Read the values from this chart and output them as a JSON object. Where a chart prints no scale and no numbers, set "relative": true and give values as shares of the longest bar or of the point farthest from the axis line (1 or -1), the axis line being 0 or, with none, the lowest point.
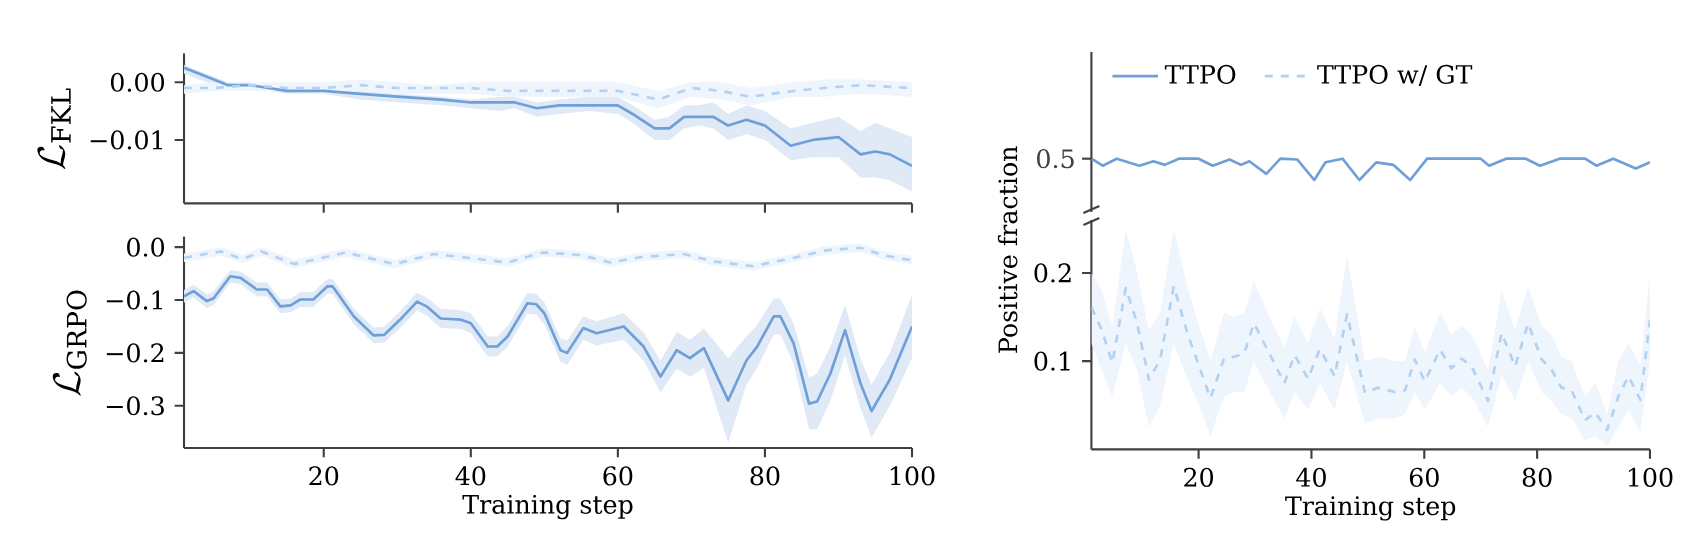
{
  "chart_data": [
    {
      "type": "line",
      "ylabel": "\\mathcal{L}_{\\mathrm{FKL}}",
      "xlim": [
        1,
        100
      ],
      "ylim": [
        -0.021,
        0.005
      ],
      "xticks": [
        {
          "value": 20,
          "label": null
        },
        {
          "value": 40,
          "label": null
        },
        {
          "value": 60,
          "label": null
        },
        {
          "value": 80,
          "label": null
        },
        {
          "value": 100,
          "label": null
        }
      ],
      "yticks": [
        {
          "value": 0,
          "label": "0.00"
        },
        {
          "value": -0.01,
          "label": "−0.01"
        }
      ],
      "tick_labels": "y",
      "series": [
        {
          "color": "#6f9fd8",
          "line_style": "solid",
          "x": [
            1,
            3,
            7,
            10,
            15,
            20,
            25,
            30,
            36,
            40,
            44,
            46,
            49,
            52,
            56,
            60,
            62,
            65,
            67,
            69,
            71,
            73,
            75,
            77.5,
            80,
            83.5,
            86.5,
            90,
            93,
            95,
            97,
            100
          ],
          "values": [
            0.0025,
            0.0015,
            -0.0005,
            -0.0005,
            -0.0015,
            -0.0015,
            -0.002,
            -0.0025,
            -0.003,
            -0.0035,
            -0.0035,
            -0.0035,
            -0.0045,
            -0.004,
            -0.004,
            -0.004,
            -0.0055,
            -0.008,
            -0.008,
            -0.006,
            -0.006,
            -0.006,
            -0.0075,
            -0.0065,
            -0.0075,
            -0.011,
            -0.01,
            -0.0095,
            -0.0125,
            -0.012,
            -0.0125,
            -0.0145
          ],
          "lower": [
            0.0015,
            0.0005,
            -0.001,
            -0.001,
            -0.002,
            -0.002,
            -0.003,
            -0.0035,
            -0.004,
            -0.0045,
            -0.005,
            -0.0045,
            -0.006,
            -0.0055,
            -0.005,
            -0.0055,
            -0.007,
            -0.01,
            -0.01,
            -0.008,
            -0.0075,
            -0.008,
            -0.01,
            -0.009,
            -0.01,
            -0.0135,
            -0.013,
            -0.013,
            -0.0165,
            -0.0165,
            -0.017,
            -0.019
          ],
          "upper": [
            0.003,
            0.002,
            0,
            0,
            -0.001,
            -0.001,
            -0.0015,
            -0.002,
            -0.0025,
            -0.003,
            -0.0025,
            -0.0025,
            -0.0035,
            -0.003,
            -0.0025,
            -0.0025,
            -0.004,
            -0.0065,
            -0.006,
            -0.004,
            -0.004,
            -0.0035,
            -0.0055,
            -0.004,
            -0.005,
            -0.008,
            -0.007,
            -0.006,
            -0.0085,
            -0.007,
            -0.008,
            -0.0095
          ]
        },
        {
          "color": "#b3d1f1",
          "line_style": "dashed",
          "x": [
            1,
            5,
            10,
            15,
            20,
            25,
            30,
            35,
            40,
            45,
            50,
            55,
            60,
            65.5,
            70,
            74,
            78,
            84,
            88,
            93,
            100
          ],
          "values": [
            -0.001,
            -0.001,
            -0.0005,
            -0.001,
            -0.001,
            -0.0005,
            -0.001,
            -0.001,
            -0.001,
            -0.0015,
            -0.0015,
            -0.0015,
            -0.0015,
            -0.003,
            -0.001,
            -0.0015,
            -0.0025,
            -0.0015,
            -0.001,
            -0.0005,
            -0.001
          ],
          "lower": [
            -0.002,
            -0.0015,
            -0.0015,
            -0.0015,
            -0.002,
            -0.0015,
            -0.002,
            -0.002,
            -0.002,
            -0.0025,
            -0.0025,
            -0.0025,
            -0.0025,
            -0.0045,
            -0.0025,
            -0.003,
            -0.004,
            -0.0025,
            -0.0025,
            -0.002,
            -0.0025
          ],
          "upper": [
            -0.0005,
            0,
            0,
            0,
            0,
            0.0005,
            0,
            -0.0005,
            0,
            0,
            0,
            0,
            0,
            -0.0015,
            0,
            0,
            -0.001,
            0,
            0.0005,
            0.0005,
            0
          ]
        }
      ]
    },
    {
      "type": "line",
      "ylabel": "\\mathcal{L}_{\\mathrm{GRPO}}",
      "xlabel": "Training step",
      "xlim": [
        1,
        100
      ],
      "ylim": [
        -0.38,
        0.02
      ],
      "xticks": [
        20,
        40,
        60,
        80,
        100
      ],
      "yticks": [
        {
          "value": 0,
          "label": "0.0"
        },
        {
          "value": -0.1,
          "label": "−0.1"
        },
        {
          "value": -0.2,
          "label": "−0.2"
        },
        {
          "value": -0.3,
          "label": "−0.3"
        }
      ],
      "series": [
        {
          "color": "#6f9fd8",
          "line_style": "solid",
          "x": [
            1,
            2.3,
            4.1,
            5,
            7.3,
            8.7,
            10.9,
            12.3,
            14.1,
            15.5,
            16.8,
            18.6,
            20.5,
            21.2,
            24.1,
            26.8,
            28.2,
            30.4,
            32.7,
            34.1,
            35.9,
            38.6,
            40,
            42.3,
            43.6,
            45,
            47.7,
            48.9,
            50,
            52.2,
            53.1,
            55.3,
            57.1,
            60.8,
            63.5,
            65.8,
            68,
            69.8,
            71.7,
            75,
            77.5,
            78.9,
            81.2,
            82.1,
            83.9,
            86,
            87.1,
            88.9,
            90.9,
            93,
            94.5,
            97,
            100
          ],
          "values": [
            -0.093,
            -0.083,
            -0.102,
            -0.097,
            -0.055,
            -0.058,
            -0.08,
            -0.08,
            -0.112,
            -0.11,
            -0.099,
            -0.099,
            -0.074,
            -0.074,
            -0.131,
            -0.167,
            -0.166,
            -0.137,
            -0.103,
            -0.113,
            -0.135,
            -0.137,
            -0.144,
            -0.188,
            -0.188,
            -0.169,
            -0.106,
            -0.108,
            -0.125,
            -0.195,
            -0.2,
            -0.153,
            -0.163,
            -0.15,
            -0.188,
            -0.245,
            -0.195,
            -0.21,
            -0.191,
            -0.29,
            -0.214,
            -0.189,
            -0.131,
            -0.131,
            -0.182,
            -0.296,
            -0.292,
            -0.239,
            -0.157,
            -0.258,
            -0.31,
            -0.25,
            -0.15
          ],
          "lower": [
            -0.105,
            -0.095,
            -0.115,
            -0.11,
            -0.067,
            -0.07,
            -0.093,
            -0.093,
            -0.125,
            -0.123,
            -0.113,
            -0.113,
            -0.088,
            -0.088,
            -0.146,
            -0.182,
            -0.181,
            -0.153,
            -0.12,
            -0.13,
            -0.153,
            -0.155,
            -0.163,
            -0.207,
            -0.207,
            -0.189,
            -0.126,
            -0.128,
            -0.146,
            -0.217,
            -0.223,
            -0.175,
            -0.186,
            -0.175,
            -0.215,
            -0.275,
            -0.23,
            -0.245,
            -0.228,
            -0.37,
            -0.26,
            -0.23,
            -0.165,
            -0.165,
            -0.22,
            -0.345,
            -0.345,
            -0.29,
            -0.205,
            -0.305,
            -0.36,
            -0.3,
            -0.21
          ],
          "upper": [
            -0.081,
            -0.071,
            -0.089,
            -0.084,
            -0.043,
            -0.046,
            -0.067,
            -0.067,
            -0.099,
            -0.097,
            -0.085,
            -0.085,
            -0.06,
            -0.06,
            -0.116,
            -0.152,
            -0.151,
            -0.121,
            -0.086,
            -0.096,
            -0.117,
            -0.119,
            -0.125,
            -0.169,
            -0.169,
            -0.149,
            -0.086,
            -0.088,
            -0.104,
            -0.173,
            -0.177,
            -0.131,
            -0.14,
            -0.125,
            -0.161,
            -0.215,
            -0.16,
            -0.175,
            -0.154,
            -0.21,
            -0.168,
            -0.148,
            -0.097,
            -0.097,
            -0.144,
            -0.247,
            -0.239,
            -0.188,
            -0.109,
            -0.211,
            -0.26,
            -0.2,
            -0.09
          ]
        },
        {
          "color": "#b3d1f1",
          "line_style": "dashed",
          "x": [
            1,
            6,
            9,
            11.5,
            16,
            23,
            29.6,
            35,
            39.5,
            45,
            49.8,
            55,
            59,
            63,
            69,
            73,
            78.4,
            84,
            88.3,
            93,
            96,
            100
          ],
          "values": [
            -0.02,
            -0.008,
            -0.023,
            -0.008,
            -0.032,
            -0.01,
            -0.032,
            -0.013,
            -0.02,
            -0.029,
            -0.01,
            -0.015,
            -0.029,
            -0.019,
            -0.013,
            -0.027,
            -0.036,
            -0.02,
            -0.006,
            -0.001,
            -0.015,
            -0.025
          ],
          "lower": [
            -0.028,
            -0.016,
            -0.031,
            -0.016,
            -0.04,
            -0.018,
            -0.04,
            -0.021,
            -0.028,
            -0.037,
            -0.018,
            -0.023,
            -0.037,
            -0.027,
            -0.021,
            -0.035,
            -0.044,
            -0.028,
            -0.014,
            -0.009,
            -0.023,
            -0.033
          ],
          "upper": [
            -0.012,
            0.0,
            -0.015,
            0.0,
            -0.024,
            -0.002,
            -0.024,
            -0.005,
            -0.012,
            -0.021,
            -0.002,
            -0.007,
            -0.021,
            -0.011,
            -0.005,
            -0.019,
            -0.028,
            -0.012,
            0.002,
            0.007,
            -0.007,
            -0.017
          ]
        }
      ]
    },
    {
      "type": "line",
      "xlim": [
        1,
        100
      ],
      "relative": true,
      "annotations": [
        "0.5"
      ],
      "tick_labels": "y",
      "legend": "top left",
      "series": [
        {
          "name": "TTPO",
          "color": "#6f9fd8",
          "line_style": "solid",
          "x": [
            1,
            3,
            5.5,
            9.5,
            12,
            14,
            16.5,
            20,
            22.5,
            25.5,
            27.5,
            29,
            32,
            34.5,
            37.5,
            40.5,
            42.5,
            45.5,
            48.5,
            51.5,
            54.5,
            57.5,
            60.5,
            70,
            71.5,
            74.5,
            78,
            80.5,
            84,
            88.5,
            90.5,
            93.5,
            97.5,
            100
          ],
          "values": [
            1,
            0.67,
            1,
            0.67,
            0.88,
            0.71,
            1,
            1,
            0.67,
            0.96,
            0.71,
            0.88,
            0.29,
            1,
            0.96,
            0,
            0.83,
            1,
            0,
            0.83,
            0.71,
            0,
            1,
            1,
            0.67,
            1,
            1,
            0.67,
            1,
            1,
            0.67,
            1,
            0.54,
            0.83
          ]
        },
        {
          "name": "TTPO w/ GT",
          "color": "#b3d1f1",
          "line_style": "dashed"
        }
      ]
    },
    {
      "type": "line",
      "ylabel": "Positive fraction",
      "xlabel": "Training step",
      "xlim": [
        1,
        100
      ],
      "ylim": [
        0,
        0.26
      ],
      "xticks": [
        20,
        40,
        60,
        80,
        100
      ],
      "yticks": [
        0.1,
        0.2
      ],
      "series": [
        {
          "color": "#b3d1f1",
          "line_style": "dashed",
          "x": [
            1,
            2.8,
            4.7,
            7.1,
            9.1,
            11.2,
            13.2,
            15.6,
            18,
            20.1,
            22.1,
            24.5,
            26.3,
            28.1,
            29.8,
            32.2,
            35.2,
            37,
            39.4,
            41.5,
            44.1,
            46.3,
            49.5,
            51.8,
            54.8,
            56.6,
            58.3,
            60.1,
            62.8,
            64.8,
            66.6,
            68.4,
            71.3,
            73.7,
            76.1,
            78.4,
            80.8,
            82.6,
            84.3,
            86.1,
            88.5,
            90.3,
            92.4,
            94.4,
            96.2,
            98.3,
            100
          ],
          "values": [
            0.161,
            0.136,
            0.098,
            0.183,
            0.143,
            0.079,
            0.102,
            0.185,
            0.132,
            0.094,
            0.058,
            0.103,
            0.105,
            0.109,
            0.143,
            0.113,
            0.075,
            0.107,
            0.08,
            0.114,
            0.083,
            0.153,
            0.064,
            0.07,
            0.065,
            0.067,
            0.102,
            0.077,
            0.113,
            0.092,
            0.103,
            0.094,
            0.055,
            0.132,
            0.094,
            0.143,
            0.102,
            0.09,
            0.07,
            0.067,
            0.033,
            0.042,
            0.022,
            0.06,
            0.083,
            0.056,
            0.147
          ],
          "lower": [
            0.12,
            0.09,
            0.06,
            0.12,
            0.09,
            0.025,
            0.05,
            0.12,
            0.08,
            0.05,
            0.015,
            0.06,
            0.065,
            0.065,
            0.1,
            0.07,
            0.035,
            0.065,
            0.045,
            0.075,
            0.045,
            0.1,
            0.03,
            0.035,
            0.035,
            0.04,
            0.065,
            0.045,
            0.075,
            0.06,
            0.07,
            0.06,
            0.025,
            0.085,
            0.055,
            0.1,
            0.065,
            0.055,
            0.04,
            0.035,
            0.01,
            0.015,
            0.005,
            0.025,
            0.045,
            0.02,
            0.1
          ],
          "upper": [
            0.2,
            0.18,
            0.14,
            0.25,
            0.2,
            0.135,
            0.155,
            0.25,
            0.185,
            0.14,
            0.1,
            0.155,
            0.15,
            0.155,
            0.19,
            0.155,
            0.115,
            0.15,
            0.12,
            0.16,
            0.125,
            0.22,
            0.1,
            0.105,
            0.1,
            0.1,
            0.14,
            0.11,
            0.155,
            0.13,
            0.14,
            0.13,
            0.09,
            0.18,
            0.135,
            0.185,
            0.14,
            0.13,
            0.105,
            0.1,
            0.06,
            0.075,
            0.04,
            0.1,
            0.12,
            0.095,
            0.2
          ]
        }
      ]
    }
  ]
}
